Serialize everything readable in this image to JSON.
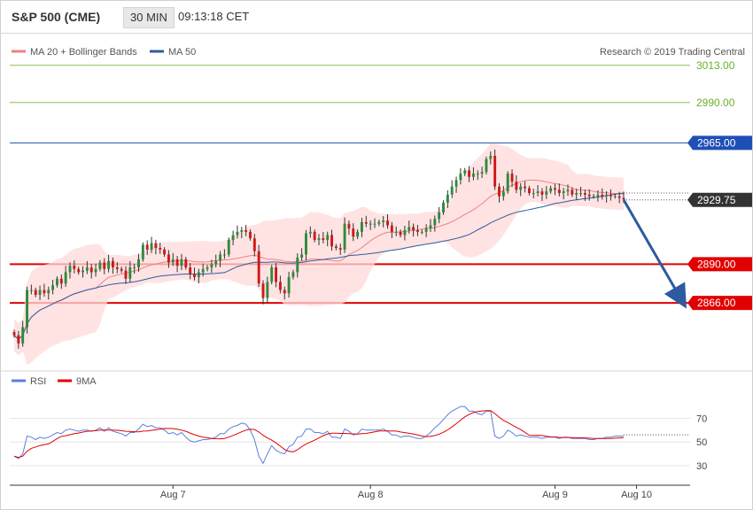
{
  "header": {
    "instrument": "S&P 500 (CME)",
    "timeframe": "30 MIN",
    "time": "09:13:18 CET"
  },
  "legend": {
    "ma20_label": "MA 20 + Bollinger Bands",
    "ma50_label": "MA 50",
    "ma20_color": "#f08080",
    "ma50_color": "#2f5d9e",
    "copyright": "Research © 2019 Trading Central"
  },
  "rsi_legend": {
    "rsi_label": "RSI",
    "ma9_label": "9MA",
    "rsi_color": "#5b7fdc",
    "ma9_color": "#e00000"
  },
  "chart_data": {
    "type": "candlestick",
    "price_ylim": [
      2825,
      3020
    ],
    "rsi_ylim": [
      15,
      95
    ],
    "x_tick_labels": [
      {
        "label": "Aug 7",
        "index": 37
      },
      {
        "label": "Aug 8",
        "index": 83
      },
      {
        "label": "Aug 9",
        "index": 126
      },
      {
        "label": "Aug 10",
        "index": 145
      }
    ],
    "levels": [
      {
        "label": "3013.00",
        "value": 3013,
        "color": "#6ab02e",
        "style": "thin-green",
        "badge": false
      },
      {
        "label": "2990.00",
        "value": 2990,
        "color": "#6ab02e",
        "style": "thin-green",
        "badge": false
      },
      {
        "label": "2965.00",
        "value": 2965,
        "color": "#1f4fb5",
        "style": "blue",
        "badge": true
      },
      {
        "label": "2929.75",
        "value": 2929.75,
        "color": "#333333",
        "style": "last-price",
        "badge": true
      },
      {
        "label": "2890.00",
        "value": 2890,
        "color": "#e00000",
        "style": "red",
        "badge": true
      },
      {
        "label": "2866.00",
        "value": 2866,
        "color": "#e00000",
        "style": "red",
        "badge": true
      }
    ],
    "rsi_ticks": [
      70,
      50,
      30
    ],
    "rsi_dotted_level": 56,
    "forecast_arrow": {
      "from_index": 142,
      "from_value": 2929.75,
      "to_index": 154,
      "to_value": 2866,
      "color": "#2d5aa0"
    },
    "closes": [
      2846,
      2841,
      2851,
      2874,
      2874,
      2871,
      2874,
      2872,
      2874,
      2877,
      2881,
      2878,
      2885,
      2889,
      2887,
      2885,
      2886,
      2888,
      2885,
      2887,
      2891,
      2887,
      2892,
      2888,
      2887,
      2886,
      2881,
      2888,
      2888,
      2893,
      2902,
      2899,
      2903,
      2900,
      2899,
      2896,
      2891,
      2893,
      2889,
      2893,
      2888,
      2884,
      2882,
      2885,
      2887,
      2888,
      2890,
      2892,
      2896,
      2896,
      2905,
      2908,
      2910,
      2911,
      2910,
      2906,
      2898,
      2878,
      2869,
      2879,
      2888,
      2879,
      2874,
      2872,
      2882,
      2885,
      2894,
      2896,
      2909,
      2910,
      2905,
      2906,
      2905,
      2908,
      2901,
      2900,
      2899,
      2915,
      2912,
      2907,
      2910,
      2916,
      2915,
      2915,
      2915,
      2916,
      2917,
      2914,
      2910,
      2910,
      2908,
      2911,
      2913,
      2911,
      2910,
      2910,
      2912,
      2914,
      2918,
      2922,
      2928,
      2933,
      2938,
      2942,
      2946,
      2948,
      2944,
      2946,
      2946,
      2947,
      2955,
      2957,
      2938,
      2932,
      2935,
      2946,
      2941,
      2936,
      2938,
      2937,
      2934,
      2934,
      2935,
      2933,
      2935,
      2937,
      2936,
      2934,
      2935,
      2936,
      2933,
      2934,
      2934,
      2933,
      2932,
      2932,
      2933,
      2932,
      2933,
      2932,
      2932,
      2931,
      2930
    ],
    "rsi": [
      38,
      36,
      40,
      55,
      54,
      52,
      54,
      53,
      54,
      56,
      58,
      57,
      60,
      61,
      60,
      59,
      60,
      60,
      59,
      60,
      62,
      59,
      62,
      59,
      58,
      57,
      55,
      58,
      58,
      61,
      65,
      63,
      64,
      62,
      62,
      60,
      57,
      58,
      56,
      58,
      54,
      51,
      50,
      51,
      52,
      52,
      53,
      54,
      57,
      57,
      61,
      63,
      64,
      66,
      65,
      60,
      52,
      38,
      32,
      40,
      47,
      43,
      41,
      40,
      46,
      48,
      54,
      55,
      61,
      61,
      58,
      58,
      57,
      59,
      54,
      54,
      53,
      61,
      59,
      56,
      57,
      61,
      60,
      60,
      60,
      60,
      61,
      59,
      56,
      56,
      54,
      55,
      55,
      54,
      53,
      53,
      55,
      58,
      62,
      65,
      69,
      73,
      76,
      78,
      80,
      80,
      76,
      76,
      74,
      73,
      76,
      76,
      55,
      53,
      55,
      60,
      58,
      55,
      56,
      55,
      54,
      54,
      54,
      53,
      54,
      54,
      54,
      53,
      54,
      54,
      53,
      53,
      53,
      53,
      52,
      52,
      53,
      53,
      54,
      54,
      55,
      55,
      55
    ]
  }
}
